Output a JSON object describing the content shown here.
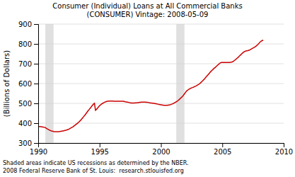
{
  "chart_data": {
    "type": "line",
    "title": "Consumer (Individual) Loans at All Commercial Banks\n(CONSUMER) Vintage: 2008-05-09",
    "y_label": "(Billions of Dollars)",
    "annotations": [
      "Shaded areas indicate US recessions as determined by the NBER.",
      "2008 Federal Reserve Bank of St. Louis:  research.stlouisfed.org"
    ],
    "xlim": [
      1990,
      2010
    ],
    "ylim": [
      300,
      900
    ],
    "xticks": [
      1990,
      1995,
      2000,
      2005,
      2010
    ],
    "yticks": [
      300,
      400,
      500,
      600,
      700,
      800,
      900
    ],
    "grid": true,
    "color": "#cc0000",
    "recessions": [
      {
        "start": 1990.583,
        "end": 1991.25
      },
      {
        "start": 2001.25,
        "end": 2001.917
      }
    ],
    "x": [
      1990.0,
      1990.083,
      1990.167,
      1990.25,
      1990.333,
      1990.417,
      1990.5,
      1990.583,
      1990.667,
      1990.75,
      1990.833,
      1990.917,
      1991.0,
      1991.083,
      1991.167,
      1991.25,
      1991.333,
      1991.417,
      1991.5,
      1991.583,
      1991.667,
      1991.75,
      1991.833,
      1991.917,
      1992.0,
      1992.083,
      1992.167,
      1992.25,
      1992.333,
      1992.417,
      1992.5,
      1992.583,
      1992.667,
      1992.75,
      1992.833,
      1992.917,
      1993.0,
      1993.083,
      1993.167,
      1993.25,
      1993.333,
      1993.417,
      1993.5,
      1993.583,
      1993.667,
      1993.75,
      1993.833,
      1993.917,
      1994.0,
      1994.083,
      1994.167,
      1994.25,
      1994.333,
      1994.417,
      1994.5,
      1994.583,
      1994.667,
      1994.75,
      1994.833,
      1994.917,
      1995.0,
      1995.083,
      1995.167,
      1995.25,
      1995.333,
      1995.417,
      1995.5,
      1995.583,
      1995.667,
      1995.75,
      1995.833,
      1995.917,
      1996.0,
      1996.083,
      1996.167,
      1996.25,
      1996.333,
      1996.417,
      1996.5,
      1996.583,
      1996.667,
      1996.75,
      1996.833,
      1996.917,
      1997.0,
      1997.083,
      1997.167,
      1997.25,
      1997.333,
      1997.417,
      1997.5,
      1997.583,
      1997.667,
      1997.75,
      1997.833,
      1997.917,
      1998.0,
      1998.083,
      1998.167,
      1998.25,
      1998.333,
      1998.417,
      1998.5,
      1998.583,
      1998.667,
      1998.75,
      1998.833,
      1998.917,
      1999.0,
      1999.083,
      1999.167,
      1999.25,
      1999.333,
      1999.417,
      1999.5,
      1999.583,
      1999.667,
      1999.75,
      1999.833,
      1999.917,
      2000.0,
      2000.083,
      2000.167,
      2000.25,
      2000.333,
      2000.417,
      2000.5,
      2000.583,
      2000.667,
      2000.75,
      2000.833,
      2000.917,
      2001.0,
      2001.083,
      2001.167,
      2001.25,
      2001.333,
      2001.417,
      2001.5,
      2001.583,
      2001.667,
      2001.75,
      2001.833,
      2001.917,
      2002.0,
      2002.083,
      2002.167,
      2002.25,
      2002.333,
      2002.417,
      2002.5,
      2002.583,
      2002.667,
      2002.75,
      2002.833,
      2002.917,
      2003.0,
      2003.083,
      2003.167,
      2003.25,
      2003.333,
      2003.417,
      2003.5,
      2003.583,
      2003.667,
      2003.75,
      2003.833,
      2003.917,
      2004.0,
      2004.083,
      2004.167,
      2004.25,
      2004.333,
      2004.417,
      2004.5,
      2004.583,
      2004.667,
      2004.75,
      2004.833,
      2004.917,
      2005.0,
      2005.083,
      2005.167,
      2005.25,
      2005.333,
      2005.417,
      2005.5,
      2005.583,
      2005.667,
      2005.75,
      2005.833,
      2005.917,
      2006.0,
      2006.083,
      2006.167,
      2006.25,
      2006.333,
      2006.417,
      2006.5,
      2006.583,
      2006.667,
      2006.75,
      2006.833,
      2006.917,
      2007.0,
      2007.083,
      2007.167,
      2007.25,
      2007.333,
      2007.417,
      2007.5,
      2007.583,
      2007.667,
      2007.75,
      2007.833,
      2007.917,
      2008.0,
      2008.083,
      2008.167,
      2008.25,
      2008.333
    ],
    "values": [
      383,
      383,
      383,
      382,
      381,
      380,
      379,
      378,
      374,
      371,
      368,
      365,
      363,
      361,
      360,
      358,
      357,
      357,
      357,
      357,
      357,
      358,
      359,
      360,
      361,
      362,
      363,
      364,
      366,
      368,
      370,
      373,
      376,
      379,
      382,
      386,
      390,
      394,
      398,
      402,
      407,
      412,
      418,
      424,
      430,
      437,
      443,
      450,
      457,
      464,
      470,
      477,
      483,
      490,
      496,
      500,
      465,
      470,
      476,
      482,
      488,
      493,
      497,
      500,
      503,
      506,
      508,
      510,
      511,
      512,
      512,
      512,
      512,
      512,
      511,
      511,
      511,
      511,
      511,
      511,
      511,
      511,
      511,
      511,
      510,
      508,
      507,
      506,
      505,
      504,
      503,
      502,
      502,
      502,
      502,
      503,
      503,
      504,
      504,
      505,
      505,
      506,
      506,
      506,
      506,
      506,
      505,
      505,
      504,
      503,
      502,
      502,
      501,
      500,
      499,
      498,
      497,
      496,
      495,
      494,
      493,
      492,
      491,
      490,
      490,
      490,
      490,
      491,
      492,
      493,
      495,
      497,
      499,
      502,
      505,
      508,
      511,
      515,
      520,
      525,
      530,
      535,
      541,
      548,
      555,
      562,
      566,
      570,
      573,
      576,
      578,
      580,
      582,
      585,
      587,
      590,
      593,
      596,
      600,
      605,
      610,
      615,
      620,
      626,
      632,
      638,
      644,
      650,
      656,
      662,
      667,
      672,
      677,
      681,
      686,
      691,
      695,
      700,
      704,
      706,
      706,
      706,
      706,
      706,
      706,
      706,
      706,
      706,
      707,
      708,
      710,
      713,
      717,
      721,
      726,
      730,
      735,
      740,
      745,
      750,
      755,
      759,
      762,
      764,
      765,
      766,
      768,
      770,
      773,
      776,
      779,
      782,
      785,
      789,
      793,
      798,
      804,
      810,
      814,
      817,
      819
    ]
  }
}
